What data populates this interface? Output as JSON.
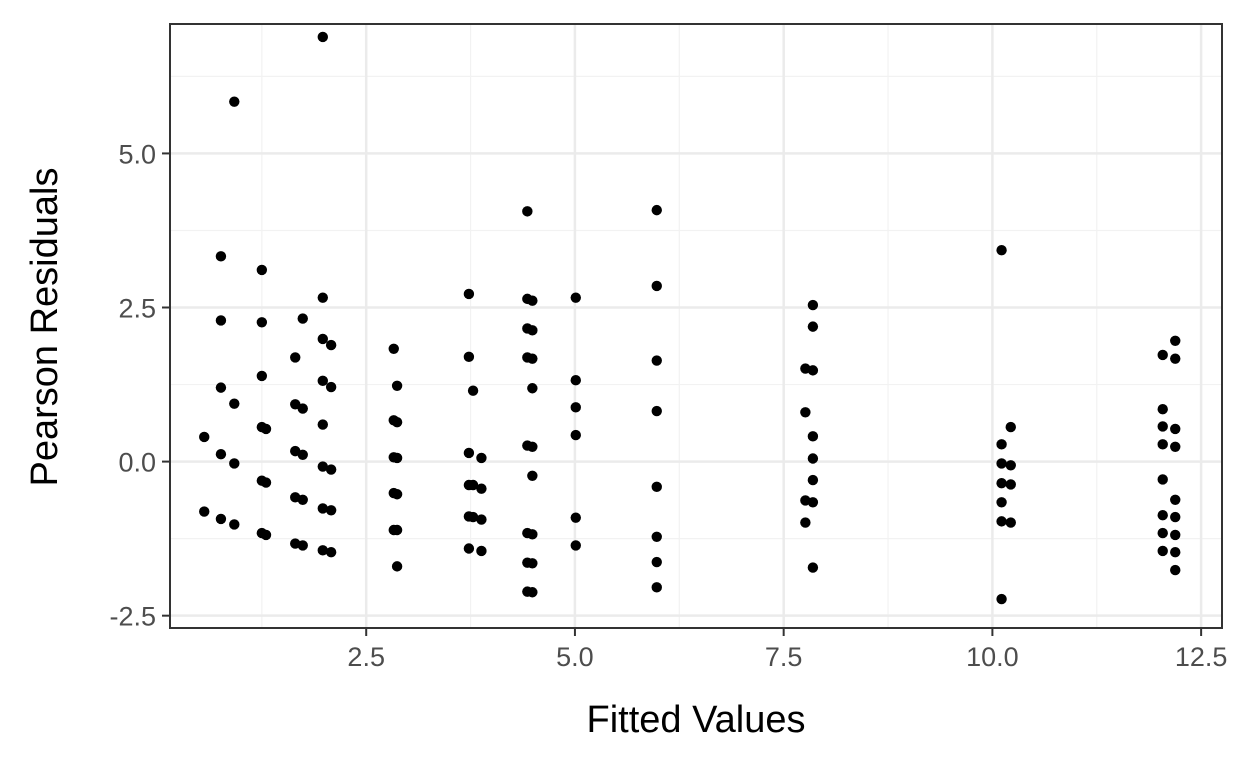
{
  "chart_data": {
    "type": "scatter",
    "title": "",
    "xlabel": "Fitted Values",
    "ylabel": "Pearson Residuals",
    "xlim": [
      0.15,
      12.75
    ],
    "ylim": [
      -2.7,
      7.1
    ],
    "x_ticks": [
      2.5,
      5.0,
      7.5,
      10.0,
      12.5
    ],
    "x_tick_labels": [
      "2.5",
      "5.0",
      "7.5",
      "10.0",
      "12.5"
    ],
    "y_ticks": [
      -2.5,
      0.0,
      2.5,
      5.0
    ],
    "y_tick_labels": [
      "-2.5",
      "0.0",
      "2.5",
      "5.0"
    ],
    "grid": true,
    "legend": "none",
    "colors": {
      "point": "#000000",
      "grid_major": "#ebebeb",
      "grid_minor": "#f2f2f2",
      "panel_border": "#333333",
      "tick_text": "#4d4d4d"
    },
    "points": [
      {
        "x": 0.56,
        "y": 0.4
      },
      {
        "x": 0.56,
        "y": -0.81
      },
      {
        "x": 0.76,
        "y": 3.33
      },
      {
        "x": 0.76,
        "y": 2.29
      },
      {
        "x": 0.76,
        "y": 1.2
      },
      {
        "x": 0.76,
        "y": 0.12
      },
      {
        "x": 0.76,
        "y": -0.93
      },
      {
        "x": 0.92,
        "y": 5.84
      },
      {
        "x": 0.92,
        "y": 0.94
      },
      {
        "x": 0.92,
        "y": -0.03
      },
      {
        "x": 0.92,
        "y": -1.02
      },
      {
        "x": 1.25,
        "y": 3.11
      },
      {
        "x": 1.25,
        "y": 2.26
      },
      {
        "x": 1.25,
        "y": 1.39
      },
      {
        "x": 1.25,
        "y": 0.56
      },
      {
        "x": 1.25,
        "y": -0.31
      },
      {
        "x": 1.25,
        "y": -1.16
      },
      {
        "x": 1.3,
        "y": 0.53
      },
      {
        "x": 1.3,
        "y": -0.34
      },
      {
        "x": 1.3,
        "y": -1.19
      },
      {
        "x": 1.65,
        "y": 1.69
      },
      {
        "x": 1.65,
        "y": 0.93
      },
      {
        "x": 1.65,
        "y": 0.17
      },
      {
        "x": 1.65,
        "y": -0.58
      },
      {
        "x": 1.65,
        "y": -1.33
      },
      {
        "x": 1.74,
        "y": 2.32
      },
      {
        "x": 1.74,
        "y": 0.86
      },
      {
        "x": 1.74,
        "y": 0.11
      },
      {
        "x": 1.74,
        "y": -0.62
      },
      {
        "x": 1.74,
        "y": -1.36
      },
      {
        "x": 1.98,
        "y": 6.89
      },
      {
        "x": 1.98,
        "y": 2.66
      },
      {
        "x": 1.98,
        "y": 1.99
      },
      {
        "x": 1.98,
        "y": 1.31
      },
      {
        "x": 1.98,
        "y": 0.6
      },
      {
        "x": 1.98,
        "y": -0.08
      },
      {
        "x": 1.98,
        "y": -0.76
      },
      {
        "x": 1.98,
        "y": -1.44
      },
      {
        "x": 2.08,
        "y": 1.89
      },
      {
        "x": 2.08,
        "y": 1.21
      },
      {
        "x": 2.08,
        "y": -0.13
      },
      {
        "x": 2.08,
        "y": -0.79
      },
      {
        "x": 2.08,
        "y": -1.47
      },
      {
        "x": 2.83,
        "y": 1.83
      },
      {
        "x": 2.83,
        "y": 0.67
      },
      {
        "x": 2.83,
        "y": 0.07
      },
      {
        "x": 2.83,
        "y": -0.51
      },
      {
        "x": 2.83,
        "y": -1.11
      },
      {
        "x": 2.87,
        "y": 1.23
      },
      {
        "x": 2.87,
        "y": 0.64
      },
      {
        "x": 2.87,
        "y": 0.06
      },
      {
        "x": 2.87,
        "y": -0.53
      },
      {
        "x": 2.87,
        "y": -1.11
      },
      {
        "x": 2.87,
        "y": -1.7
      },
      {
        "x": 3.73,
        "y": 2.72
      },
      {
        "x": 3.73,
        "y": 1.7
      },
      {
        "x": 3.73,
        "y": 0.14
      },
      {
        "x": 3.73,
        "y": -0.38
      },
      {
        "x": 3.73,
        "y": -0.89
      },
      {
        "x": 3.73,
        "y": -1.41
      },
      {
        "x": 3.78,
        "y": 1.15
      },
      {
        "x": 3.78,
        "y": -0.38
      },
      {
        "x": 3.78,
        "y": -0.9
      },
      {
        "x": 3.88,
        "y": 0.06
      },
      {
        "x": 3.88,
        "y": -0.44
      },
      {
        "x": 3.88,
        "y": -0.94
      },
      {
        "x": 3.88,
        "y": -1.45
      },
      {
        "x": 4.43,
        "y": 4.06
      },
      {
        "x": 4.43,
        "y": 2.64
      },
      {
        "x": 4.43,
        "y": 2.16
      },
      {
        "x": 4.43,
        "y": 1.69
      },
      {
        "x": 4.43,
        "y": 0.26
      },
      {
        "x": 4.43,
        "y": -1.16
      },
      {
        "x": 4.43,
        "y": -1.64
      },
      {
        "x": 4.43,
        "y": -2.11
      },
      {
        "x": 4.49,
        "y": 2.61
      },
      {
        "x": 4.49,
        "y": 2.13
      },
      {
        "x": 4.49,
        "y": 1.67
      },
      {
        "x": 4.49,
        "y": 1.19
      },
      {
        "x": 4.49,
        "y": 0.24
      },
      {
        "x": 4.49,
        "y": -0.23
      },
      {
        "x": 4.49,
        "y": -1.18
      },
      {
        "x": 4.49,
        "y": -1.65
      },
      {
        "x": 4.49,
        "y": -2.12
      },
      {
        "x": 5.01,
        "y": 2.66
      },
      {
        "x": 5.01,
        "y": 1.32
      },
      {
        "x": 5.01,
        "y": 0.88
      },
      {
        "x": 5.01,
        "y": 0.43
      },
      {
        "x": 5.01,
        "y": -0.91
      },
      {
        "x": 5.01,
        "y": -1.36
      },
      {
        "x": 5.98,
        "y": 4.08
      },
      {
        "x": 5.98,
        "y": 2.85
      },
      {
        "x": 5.98,
        "y": 1.64
      },
      {
        "x": 5.98,
        "y": 0.82
      },
      {
        "x": 5.98,
        "y": -0.41
      },
      {
        "x": 5.98,
        "y": -1.22
      },
      {
        "x": 5.98,
        "y": -1.63
      },
      {
        "x": 5.98,
        "y": -2.04
      },
      {
        "x": 7.76,
        "y": 1.51
      },
      {
        "x": 7.76,
        "y": 0.8
      },
      {
        "x": 7.76,
        "y": -0.63
      },
      {
        "x": 7.76,
        "y": -0.99
      },
      {
        "x": 7.85,
        "y": 2.54
      },
      {
        "x": 7.85,
        "y": 2.19
      },
      {
        "x": 7.85,
        "y": 1.48
      },
      {
        "x": 7.85,
        "y": 0.41
      },
      {
        "x": 7.85,
        "y": 0.05
      },
      {
        "x": 7.85,
        "y": -0.3
      },
      {
        "x": 7.85,
        "y": -0.66
      },
      {
        "x": 7.85,
        "y": -1.72
      },
      {
        "x": 10.11,
        "y": 3.43
      },
      {
        "x": 10.11,
        "y": 0.28
      },
      {
        "x": 10.11,
        "y": -0.03
      },
      {
        "x": 10.11,
        "y": -0.35
      },
      {
        "x": 10.11,
        "y": -0.66
      },
      {
        "x": 10.11,
        "y": -0.97
      },
      {
        "x": 10.11,
        "y": -2.23
      },
      {
        "x": 10.22,
        "y": 0.56
      },
      {
        "x": 10.22,
        "y": -0.06
      },
      {
        "x": 10.22,
        "y": -0.37
      },
      {
        "x": 10.22,
        "y": -0.99
      },
      {
        "x": 12.04,
        "y": 1.73
      },
      {
        "x": 12.04,
        "y": 0.85
      },
      {
        "x": 12.04,
        "y": 0.57
      },
      {
        "x": 12.04,
        "y": 0.28
      },
      {
        "x": 12.04,
        "y": -0.29
      },
      {
        "x": 12.04,
        "y": -0.87
      },
      {
        "x": 12.04,
        "y": -1.16
      },
      {
        "x": 12.04,
        "y": -1.45
      },
      {
        "x": 12.19,
        "y": 1.96
      },
      {
        "x": 12.19,
        "y": 1.67
      },
      {
        "x": 12.19,
        "y": 0.53
      },
      {
        "x": 12.19,
        "y": 0.24
      },
      {
        "x": 12.19,
        "y": -0.62
      },
      {
        "x": 12.19,
        "y": -0.9
      },
      {
        "x": 12.19,
        "y": -1.19
      },
      {
        "x": 12.19,
        "y": -1.47
      },
      {
        "x": 12.19,
        "y": -1.76
      }
    ]
  }
}
